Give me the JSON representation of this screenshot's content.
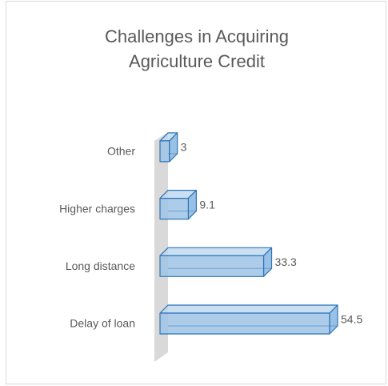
{
  "chart_data": {
    "type": "bar3d_horizontal",
    "title": "Challenges in Acquiring Agriculture Credit",
    "categories": [
      "Delay of loan",
      "Long distance",
      "Higher charges",
      "Other"
    ],
    "values": [
      54.5,
      33.3,
      9.1,
      3
    ],
    "color": "#9dc3e6"
  }
}
